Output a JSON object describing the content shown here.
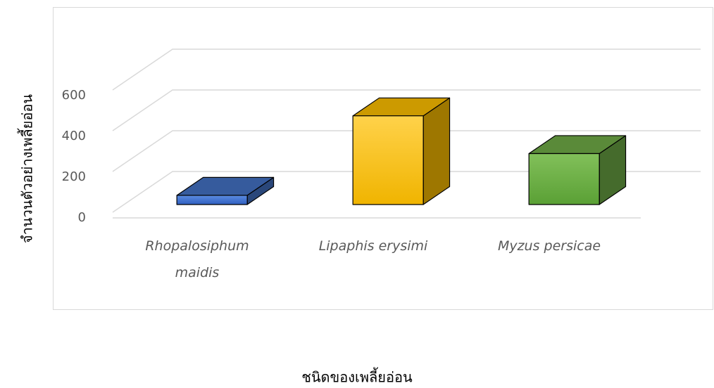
{
  "chart_data": {
    "type": "bar3d",
    "x_label": "ชนิดของเพลี้ยอ่อน",
    "y_label": "จำนวนตัวอย่างเพลี้ยอ่อน",
    "categories": [
      "Rhopalosiphum maidis",
      "Lipaphis erysimi",
      "Myzus persicae"
    ],
    "values": [
      45,
      435,
      250
    ],
    "colors": [
      "#4472c4",
      "#ffc000",
      "#70ad47"
    ],
    "ylim": [
      0,
      600
    ],
    "yticks": [
      0,
      200,
      400,
      600
    ],
    "grid": true
  }
}
